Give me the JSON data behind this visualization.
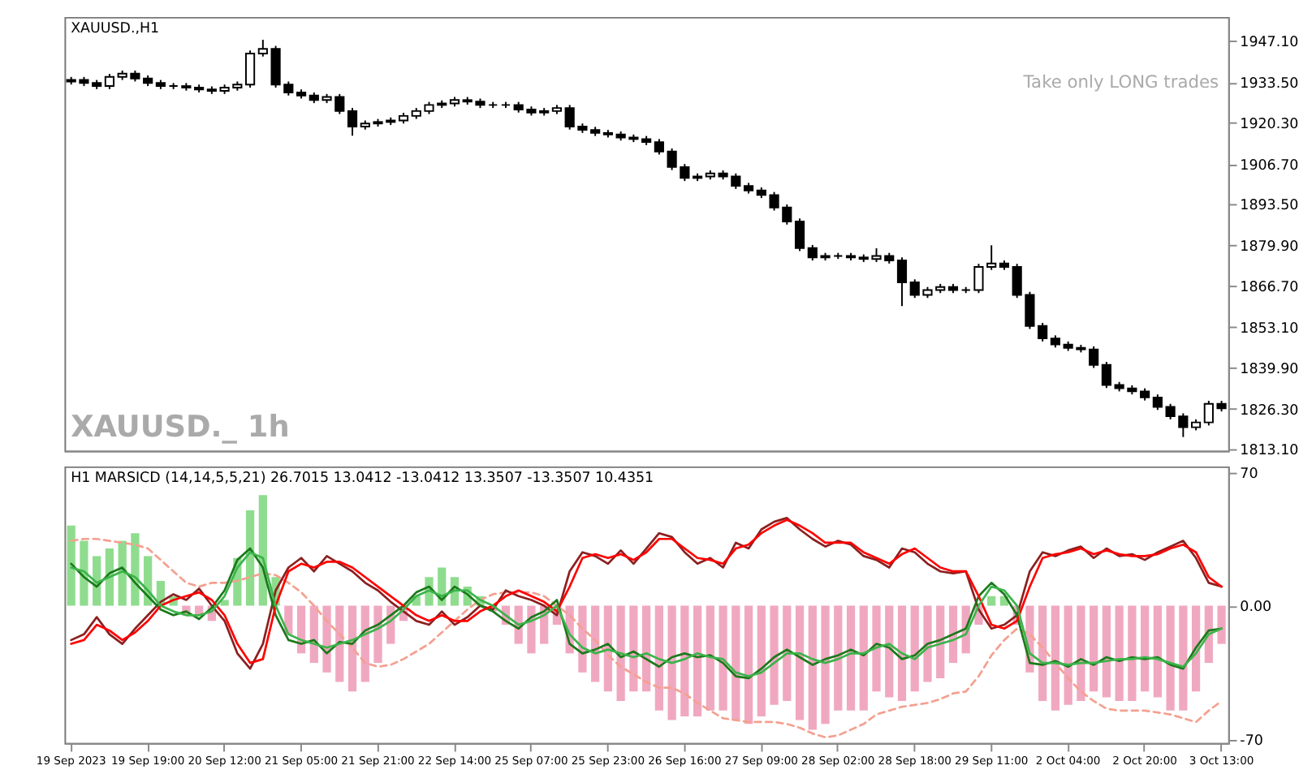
{
  "chart_data": [
    {
      "type": "candlestick",
      "title": "XAUUSD.,H1",
      "color": "#000000",
      "grid": false,
      "annotations": [
        "Take only LONG trades",
        "XAUUSD._ 1h"
      ],
      "categories": [
        null,
        null,
        null,
        null,
        null,
        null,
        null,
        null,
        null,
        null,
        null,
        null,
        null,
        null,
        null,
        null,
        null,
        null,
        null,
        null,
        null,
        null,
        null,
        null,
        null,
        null,
        null,
        null,
        null,
        null,
        null,
        null,
        null,
        null,
        null,
        null,
        null,
        null,
        null,
        null,
        null,
        null,
        null,
        null,
        null,
        null,
        null,
        null,
        null,
        null,
        null,
        null,
        null,
        null,
        null,
        null,
        null,
        null,
        null,
        null,
        null,
        null,
        null,
        null,
        null,
        null,
        null,
        null,
        null,
        null,
        null,
        null,
        null,
        null,
        null,
        null,
        null,
        null,
        null,
        null,
        null,
        null,
        null,
        null,
        null,
        null,
        null,
        null,
        null,
        null,
        null
      ],
      "ylim": [
        1812.5,
        1955
      ],
      "yticks": [
        {
          "value": 1813.1,
          "label": "1813.10"
        },
        {
          "value": 1826.3,
          "label": "1826.30"
        },
        {
          "value": 1839.9,
          "label": "1839.90"
        },
        {
          "value": 1853.1,
          "label": "1853.10"
        },
        {
          "value": 1866.7,
          "label": "1866.70"
        },
        {
          "value": 1879.9,
          "label": "1879.90"
        },
        {
          "value": 1893.5,
          "label": "1893.50"
        },
        {
          "value": 1906.7,
          "label": "1906.70"
        },
        {
          "value": 1920.3,
          "label": "1920.30"
        },
        {
          "value": 1933.5,
          "label": "1933.50"
        },
        {
          "value": 1947.1,
          "label": "1947.10"
        }
      ],
      "ohlc": [
        [
          1933.8,
          1935.3,
          1932.8,
          1934.3
        ],
        [
          1934.3,
          1935.3,
          1932.3,
          1933.3
        ],
        [
          1933.3,
          1934.3,
          1931.3,
          1932.3
        ],
        [
          1932.3,
          1936.3,
          1931.3,
          1935.3
        ],
        [
          1935.3,
          1937.4,
          1934.3,
          1936.4
        ],
        [
          1936.4,
          1937.4,
          1933.8,
          1934.8
        ],
        [
          1934.8,
          1935.8,
          1932.3,
          1933.3
        ],
        [
          1933.3,
          1934.3,
          1931.3,
          1932.3
        ],
        [
          1932.3,
          1933.3,
          1931.3,
          1932.3
        ],
        [
          1932.3,
          1933.3,
          1930.8,
          1931.8
        ],
        [
          1931.8,
          1932.8,
          1930.2,
          1931.2
        ],
        [
          1931.2,
          1932.2,
          1929.7,
          1930.7
        ],
        [
          1930.7,
          1932.8,
          1929.7,
          1931.8
        ],
        [
          1931.8,
          1933.8,
          1930.8,
          1932.8
        ],
        [
          1932.8,
          1944.0,
          1931.8,
          1943.0
        ],
        [
          1943.0,
          1947.5,
          1942.0,
          1944.5
        ],
        [
          1944.5,
          1945.5,
          1931.8,
          1932.8
        ],
        [
          1932.8,
          1933.8,
          1929.2,
          1930.2
        ],
        [
          1930.2,
          1931.2,
          1928.2,
          1929.2
        ],
        [
          1929.2,
          1930.2,
          1926.7,
          1927.7
        ],
        [
          1927.7,
          1929.7,
          1926.7,
          1928.7
        ],
        [
          1928.7,
          1929.7,
          1923.1,
          1924.1
        ],
        [
          1924.1,
          1925.1,
          1916.0,
          1919.0
        ],
        [
          1919.0,
          1921.0,
          1918.0,
          1920.0
        ],
        [
          1920.0,
          1921.5,
          1919.0,
          1920.5
        ],
        [
          1920.5,
          1922.0,
          1919.5,
          1921.0
        ],
        [
          1921.0,
          1923.5,
          1920.0,
          1922.5
        ],
        [
          1922.5,
          1925.1,
          1921.5,
          1924.1
        ],
        [
          1924.1,
          1927.1,
          1923.1,
          1926.1
        ],
        [
          1926.1,
          1927.6,
          1925.1,
          1926.6
        ],
        [
          1926.6,
          1928.7,
          1925.6,
          1927.7
        ],
        [
          1927.7,
          1928.7,
          1926.2,
          1927.2
        ],
        [
          1927.2,
          1928.2,
          1925.1,
          1926.1
        ],
        [
          1926.1,
          1927.1,
          1925.1,
          1926.1
        ],
        [
          1926.1,
          1927.1,
          1925.1,
          1926.1
        ],
        [
          1926.1,
          1927.1,
          1923.6,
          1924.6
        ],
        [
          1924.6,
          1925.6,
          1922.6,
          1923.6
        ],
        [
          1923.6,
          1925.1,
          1922.6,
          1924.1
        ],
        [
          1924.1,
          1926.1,
          1923.1,
          1925.1
        ],
        [
          1925.1,
          1926.1,
          1918.0,
          1919.0
        ],
        [
          1919.0,
          1920.0,
          1916.9,
          1917.9
        ],
        [
          1917.9,
          1918.9,
          1915.9,
          1916.9
        ],
        [
          1916.9,
          1917.9,
          1915.4,
          1916.4
        ],
        [
          1916.4,
          1917.4,
          1914.4,
          1915.4
        ],
        [
          1915.4,
          1916.4,
          1913.9,
          1914.9
        ],
        [
          1914.9,
          1915.9,
          1912.9,
          1913.9
        ],
        [
          1913.9,
          1914.9,
          1909.8,
          1910.8
        ],
        [
          1910.8,
          1911.8,
          1904.7,
          1905.7
        ],
        [
          1905.7,
          1906.7,
          1901.1,
          1902.1
        ],
        [
          1902.1,
          1903.6,
          1901.1,
          1902.6
        ],
        [
          1902.6,
          1904.6,
          1901.6,
          1903.6
        ],
        [
          1903.6,
          1904.6,
          1901.6,
          1902.6
        ],
        [
          1902.6,
          1903.6,
          1898.5,
          1899.5
        ],
        [
          1899.5,
          1900.5,
          1897.0,
          1898.0
        ],
        [
          1898.0,
          1899.0,
          1895.5,
          1896.5
        ],
        [
          1896.5,
          1897.5,
          1891.4,
          1892.4
        ],
        [
          1892.4,
          1893.4,
          1886.8,
          1887.8
        ],
        [
          1887.8,
          1888.8,
          1878.1,
          1879.1
        ],
        [
          1879.1,
          1880.1,
          1875.0,
          1876.0
        ],
        [
          1876.0,
          1877.5,
          1875.0,
          1876.5
        ],
        [
          1876.5,
          1877.5,
          1875.5,
          1876.5
        ],
        [
          1876.5,
          1877.5,
          1875.0,
          1876.0
        ],
        [
          1876.0,
          1877.0,
          1874.5,
          1875.5
        ],
        [
          1875.5,
          1879.0,
          1874.5,
          1876.5
        ],
        [
          1876.5,
          1877.5,
          1874.0,
          1875.0
        ],
        [
          1875.0,
          1876.0,
          1860.0,
          1867.8
        ],
        [
          1867.8,
          1868.8,
          1862.7,
          1863.7
        ],
        [
          1863.7,
          1866.3,
          1862.7,
          1865.3
        ],
        [
          1865.3,
          1867.3,
          1864.3,
          1866.3
        ],
        [
          1866.3,
          1867.3,
          1864.3,
          1865.3
        ],
        [
          1865.3,
          1866.3,
          1864.3,
          1865.3
        ],
        [
          1865.3,
          1873.9,
          1864.3,
          1872.9
        ],
        [
          1872.9,
          1880.0,
          1871.9,
          1874.0
        ],
        [
          1874.0,
          1875.0,
          1871.9,
          1872.9
        ],
        [
          1872.9,
          1873.9,
          1862.7,
          1863.7
        ],
        [
          1863.7,
          1864.7,
          1852.5,
          1853.5
        ],
        [
          1853.5,
          1854.5,
          1848.4,
          1849.4
        ],
        [
          1849.4,
          1850.4,
          1846.4,
          1847.4
        ],
        [
          1847.4,
          1848.4,
          1845.3,
          1846.3
        ],
        [
          1846.3,
          1847.3,
          1844.8,
          1845.8
        ],
        [
          1845.8,
          1846.8,
          1839.7,
          1840.7
        ],
        [
          1840.7,
          1841.7,
          1833.1,
          1834.1
        ],
        [
          1834.1,
          1835.1,
          1832.0,
          1833.0
        ],
        [
          1833.0,
          1834.0,
          1831.0,
          1832.0
        ],
        [
          1832.0,
          1833.0,
          1829.0,
          1830.0
        ],
        [
          1830.0,
          1831.0,
          1825.9,
          1826.9
        ],
        [
          1826.9,
          1827.9,
          1822.8,
          1823.8
        ],
        [
          1823.8,
          1824.8,
          1817.0,
          1820.2
        ],
        [
          1820.2,
          1822.8,
          1819.2,
          1821.8
        ],
        [
          1821.8,
          1828.9,
          1820.8,
          1827.9
        ],
        [
          1827.9,
          1828.9,
          1825.4,
          1826.4
        ]
      ]
    },
    {
      "type": "line",
      "title": "H1 MARSICD (14,14,5,5,21) 26.7015 13.0412 -13.0412 13.3507 -13.3507 10.4351",
      "grid": false,
      "categories": [
        "19 Sep 2023",
        null,
        null,
        null,
        null,
        null,
        "19 Sep 19:00",
        null,
        null,
        null,
        null,
        null,
        "20 Sep 12:00",
        null,
        null,
        null,
        null,
        null,
        "21 Sep 05:00",
        null,
        null,
        null,
        null,
        null,
        "21 Sep 21:00",
        null,
        null,
        null,
        null,
        null,
        "22 Sep 14:00",
        null,
        null,
        null,
        null,
        null,
        "25 Sep 07:00",
        null,
        null,
        null,
        null,
        null,
        "25 Sep 23:00",
        null,
        null,
        null,
        null,
        null,
        "26 Sep 16:00",
        null,
        null,
        null,
        null,
        null,
        "27 Sep 09:00",
        null,
        null,
        null,
        null,
        null,
        "28 Sep 02:00",
        null,
        null,
        null,
        null,
        null,
        "28 Sep 18:00",
        null,
        null,
        null,
        null,
        null,
        "29 Sep 11:00",
        null,
        null,
        null,
        null,
        null,
        "2 Oct 04:00",
        null,
        null,
        null,
        null,
        null,
        "2 Oct 20:00",
        null,
        null,
        null,
        null,
        null,
        "3 Oct 13:00"
      ],
      "ylim": [
        -72,
        73
      ],
      "yticks": [
        -70,
        {
          "value": 0,
          "label": "0.00"
        },
        70
      ],
      "series": [
        {
          "type": "bar",
          "color": "#8fdc8f",
          "values": [
            42,
            34,
            26,
            30,
            34,
            38,
            26,
            13,
            5,
            null,
            null,
            null,
            3,
            25,
            50,
            58,
            15,
            null,
            null,
            null,
            null,
            null,
            null,
            null,
            null,
            null,
            null,
            5,
            15,
            20,
            15,
            10,
            5,
            null,
            null,
            null,
            null,
            null,
            null,
            null,
            null,
            null,
            null,
            null,
            null,
            null,
            null,
            null,
            null,
            null,
            null,
            null,
            null,
            null,
            null,
            null,
            null,
            null,
            null,
            null,
            null,
            null,
            null,
            null,
            null,
            null,
            null,
            null,
            null,
            null,
            null,
            null,
            5,
            5,
            null,
            null,
            null,
            null,
            null,
            null,
            null,
            null,
            null,
            null,
            null,
            null,
            null,
            null,
            null,
            null,
            null
          ]
        },
        {
          "type": "bar",
          "color": "#f0a8c0",
          "values": [
            null,
            null,
            null,
            null,
            null,
            null,
            null,
            null,
            null,
            -5,
            -5,
            -8,
            null,
            null,
            null,
            null,
            null,
            -15,
            -25,
            -30,
            -35,
            -40,
            -45,
            -40,
            -30,
            -20,
            -8,
            null,
            null,
            null,
            null,
            null,
            null,
            -3,
            -10,
            -20,
            -25,
            -20,
            -10,
            -25,
            -35,
            -40,
            -45,
            -50,
            -45,
            -45,
            -55,
            -60,
            -58,
            -58,
            -55,
            -55,
            -60,
            -62,
            -58,
            -52,
            -50,
            -60,
            -65,
            -62,
            -55,
            -55,
            -55,
            -45,
            -48,
            -50,
            -45,
            -40,
            -38,
            -30,
            -25,
            -10,
            null,
            null,
            -10,
            -35,
            -50,
            -55,
            -52,
            -50,
            -45,
            -48,
            -50,
            -50,
            -45,
            -48,
            -55,
            -55,
            -45,
            -30,
            -20
          ]
        },
        {
          "type": "line",
          "color": "#f4a090",
          "line_style": "dashed",
          "values": [
            34,
            35,
            35,
            34,
            33,
            32,
            30,
            24,
            18,
            12,
            10,
            12,
            12,
            13,
            15,
            17,
            16,
            12,
            7,
            0,
            -8,
            -15,
            -22,
            -30,
            -32,
            -31,
            -28,
            -24,
            -20,
            -14,
            -8,
            -2,
            3,
            6,
            7,
            7,
            7,
            5,
            0,
            -5,
            -12,
            -18,
            -26,
            -32,
            -36,
            -40,
            -43,
            -43,
            -46,
            -51,
            -55,
            -59,
            -60,
            -61,
            -61,
            -61,
            -62,
            -64,
            -67,
            -69,
            -68,
            -65,
            -62,
            -57,
            -55,
            -53,
            -52,
            -51,
            -49,
            -46,
            -45,
            -37,
            -26,
            -18,
            -12,
            -15,
            -22,
            -30,
            -38,
            -45,
            -50,
            -54,
            -55,
            -55,
            -55,
            -56,
            -57,
            -59,
            -61,
            -55,
            -50
          ]
        },
        {
          "type": "line",
          "color": "#8b2020",
          "values": [
            -18,
            -15,
            -6,
            -15,
            -20,
            -12,
            -5,
            2,
            6,
            3,
            9,
            0,
            -8,
            -25,
            -33,
            -20,
            8,
            20,
            25,
            18,
            26,
            22,
            18,
            12,
            8,
            2,
            -3,
            -8,
            -10,
            -3,
            -10,
            -6,
            0,
            -2,
            8,
            5,
            3,
            0,
            -5,
            18,
            28,
            26,
            22,
            29,
            22,
            30,
            38,
            36,
            28,
            22,
            25,
            20,
            33,
            30,
            40,
            44,
            46,
            40,
            35,
            31,
            34,
            32,
            26,
            24,
            20,
            30,
            28,
            22,
            18,
            17,
            18,
            -2,
            -12,
            -10,
            -5,
            18,
            28,
            26,
            29,
            31,
            25,
            30,
            26,
            27,
            24,
            28,
            31,
            34,
            25,
            12,
            10
          ]
        },
        {
          "type": "line",
          "color": "#1a7a1a",
          "values": [
            22,
            15,
            10,
            17,
            20,
            12,
            5,
            -2,
            -5,
            -3,
            -7,
            -1,
            8,
            24,
            30,
            20,
            -5,
            -18,
            -20,
            -18,
            -25,
            -19,
            -20,
            -13,
            -10,
            -5,
            0,
            7,
            10,
            3,
            10,
            6,
            0,
            -3,
            -8,
            -12,
            -6,
            -3,
            3,
            -20,
            -25,
            -23,
            -20,
            -27,
            -24,
            -28,
            -32,
            -27,
            -25,
            -27,
            -26,
            -30,
            -37,
            -38,
            -33,
            -27,
            -23,
            -27,
            -31,
            -28,
            -26,
            -23,
            -26,
            -20,
            -22,
            -28,
            -26,
            -20,
            -18,
            -15,
            -12,
            5,
            12,
            6,
            -5,
            -30,
            -31,
            -29,
            -32,
            -28,
            -31,
            -27,
            -29,
            -27,
            -28,
            -27,
            -31,
            -33,
            -22,
            -13,
            -12
          ]
        },
        {
          "type": "line",
          "color": "#ff0000",
          "values": [
            -20,
            -18,
            -10,
            -13,
            -18,
            -14,
            -8,
            0,
            3,
            5,
            7,
            3,
            -5,
            -20,
            -30,
            -28,
            0,
            18,
            22,
            20,
            23,
            23,
            20,
            15,
            10,
            5,
            0,
            -5,
            -8,
            -5,
            -8,
            -8,
            -3,
            0,
            5,
            8,
            5,
            2,
            -3,
            10,
            25,
            27,
            25,
            27,
            24,
            28,
            35,
            35,
            30,
            25,
            24,
            22,
            30,
            32,
            38,
            42,
            45,
            42,
            38,
            33,
            33,
            33,
            28,
            25,
            22,
            27,
            30,
            25,
            20,
            18,
            18,
            5,
            -10,
            -12,
            -8,
            10,
            25,
            27,
            28,
            30,
            27,
            29,
            27,
            26,
            26,
            27,
            30,
            32,
            28,
            15,
            10
          ]
        },
        {
          "type": "line",
          "color": "#3cb44b",
          "values": [
            20,
            18,
            12,
            15,
            18,
            15,
            8,
            0,
            -3,
            -5,
            -5,
            -3,
            5,
            20,
            28,
            25,
            0,
            -15,
            -18,
            -20,
            -22,
            -20,
            -18,
            -15,
            -12,
            -8,
            -2,
            5,
            8,
            5,
            8,
            8,
            3,
            0,
            -5,
            -10,
            -8,
            -5,
            0,
            -15,
            -22,
            -25,
            -23,
            -25,
            -27,
            -25,
            -28,
            -30,
            -28,
            -25,
            -27,
            -28,
            -35,
            -37,
            -35,
            -30,
            -25,
            -25,
            -28,
            -30,
            -28,
            -25,
            -25,
            -22,
            -20,
            -25,
            -28,
            -22,
            -20,
            -18,
            -15,
            0,
            10,
            8,
            0,
            -25,
            -30,
            -30,
            -31,
            -30,
            -30,
            -29,
            -28,
            -28,
            -27,
            -28,
            -30,
            -32,
            -25,
            -15,
            -12
          ]
        }
      ]
    }
  ]
}
